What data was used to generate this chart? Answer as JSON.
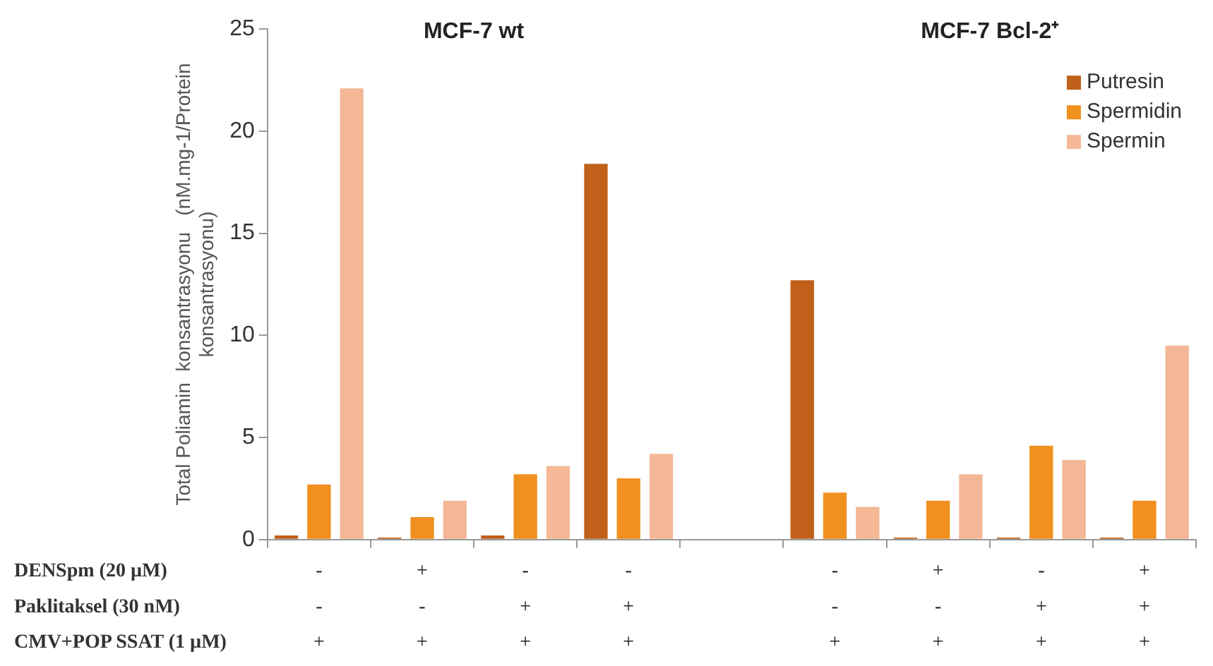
{
  "chart_data": {
    "type": "bar",
    "ylabel": "Total Poliamin  konsantrasyonu   (nM.mg-1/Protein konsantrasyonu)",
    "annotations": [
      "MCF-7 wt",
      "MCF-7 Bcl-2⁺",
      "DENSpm (20 µM)",
      "Paklitaksel (30 nM)",
      "CMV+POP SSAT (1 µM)"
    ],
    "categories": [
      "-\n-\n+",
      "+\n-\n+",
      "-\n+\n+",
      "-\n+\n+",
      null,
      "-\n-\n+",
      "+\n-\n+",
      "-\n+\n+",
      "+\n+\n+"
    ],
    "series": [
      {
        "name": "Putresin",
        "color": "#c0601a",
        "values": [
          0.2,
          0.1,
          0.2,
          18.4,
          null,
          12.7,
          0.1,
          0.1,
          0.1
        ]
      },
      {
        "name": "Spermidin",
        "color": "#f0901e",
        "values": [
          2.7,
          1.1,
          3.2,
          3.0,
          null,
          2.3,
          1.9,
          4.6,
          1.9
        ]
      },
      {
        "name": "Spermin",
        "color": "#f4b896",
        "values": [
          22.1,
          1.9,
          3.6,
          4.2,
          null,
          1.6,
          3.2,
          3.9,
          9.5
        ]
      }
    ],
    "ylim": [
      0,
      25
    ],
    "yticks": [
      0,
      5,
      10,
      15,
      20,
      25
    ],
    "grid": false,
    "legend": "top right"
  }
}
